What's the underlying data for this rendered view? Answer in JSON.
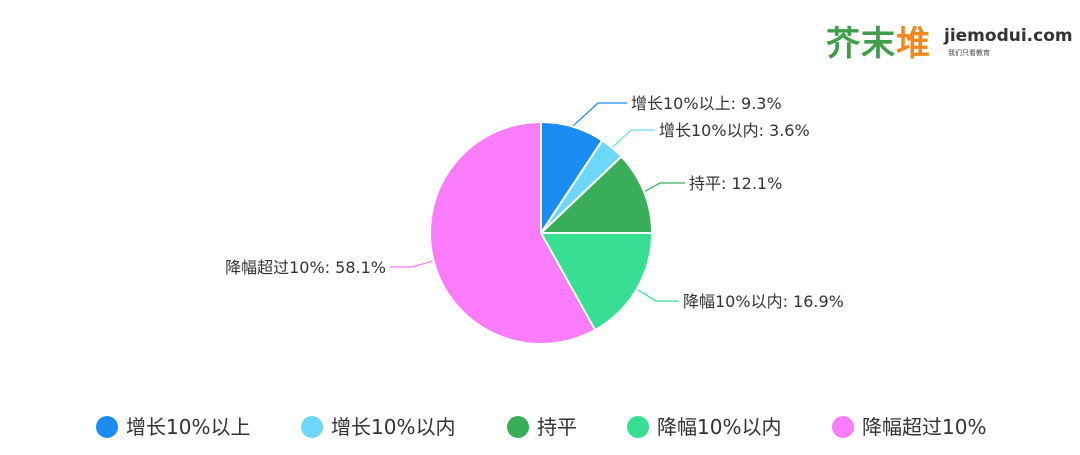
{
  "logo": {
    "chars": [
      "芥",
      "末",
      "堆"
    ],
    "domain": "jiemodui.com",
    "slogan": "我们只看教育"
  },
  "chart_data": {
    "type": "pie",
    "title": "",
    "slices": [
      {
        "name": "增长10%以上",
        "value": 9.3,
        "color": "#1a8cf2",
        "label": "增长10%以上: 9.3%"
      },
      {
        "name": "增长10%以内",
        "value": 3.6,
        "color": "#6dd7fb",
        "label": "增长10%以内: 3.6%"
      },
      {
        "name": "持平",
        "value": 12.1,
        "color": "#3aad58",
        "label": "持平: 12.1%"
      },
      {
        "name": "降幅10%以内",
        "value": 16.9,
        "color": "#38df92",
        "label": "降幅10%以内: 16.9%"
      },
      {
        "name": "降幅超过10%",
        "value": 58.1,
        "color": "#fb7dfb",
        "label": "降幅超过10%: 58.1%"
      }
    ],
    "legend": {
      "position": "bottom",
      "items": [
        "增长10%以上",
        "增长10%以内",
        "持平",
        "降幅10%以内",
        "降幅超过10%"
      ]
    }
  }
}
